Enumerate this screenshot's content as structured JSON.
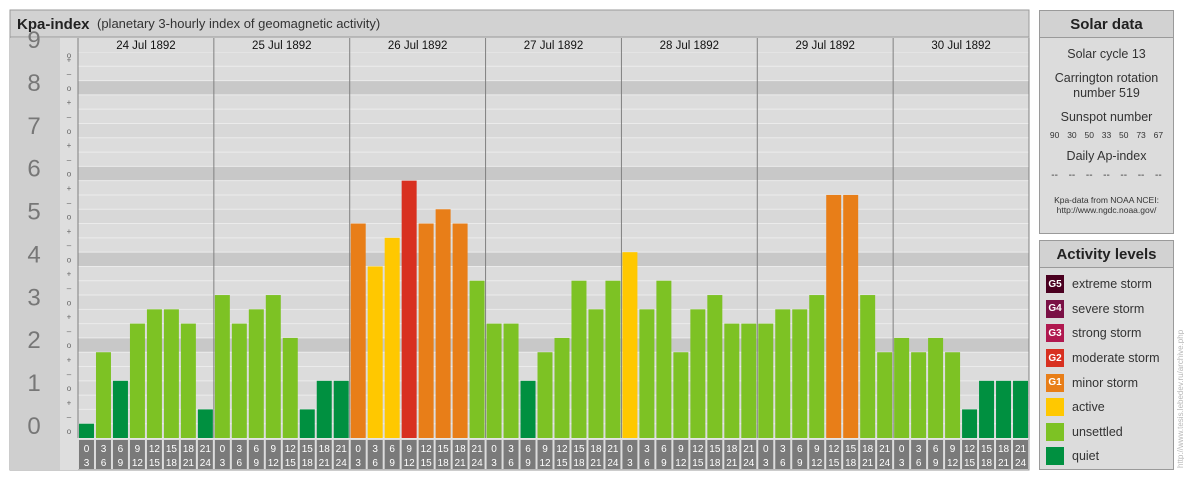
{
  "chart_data": {
    "type": "bar",
    "title": "Kpa-index",
    "subtitle": "(planetary 3-hourly index of geomagnetic activity)",
    "ylim": [
      0,
      9
    ],
    "y_ticks": [
      "0",
      "1",
      "2",
      "3",
      "4",
      "5",
      "6",
      "7",
      "8",
      "9"
    ],
    "sub_ticks": [
      "o",
      "–",
      "+"
    ],
    "days": [
      "24 Jul 1892",
      "25 Jul 1892",
      "26 Jul 1892",
      "27 Jul 1892",
      "28 Jul 1892",
      "29 Jul 1892",
      "30 Jul 1892"
    ],
    "interval_starts": [
      "0",
      "3",
      "6",
      "9",
      "12",
      "15",
      "18",
      "21"
    ],
    "interval_ends": [
      "3",
      "6",
      "9",
      "12",
      "15",
      "18",
      "21",
      "24"
    ],
    "values": [
      [
        0.333,
        2.0,
        1.333,
        2.667,
        3.0,
        3.0,
        2.667,
        0.667
      ],
      [
        3.333,
        2.667,
        3.0,
        3.333,
        2.333,
        0.667,
        1.333,
        1.333
      ],
      [
        5.0,
        4.0,
        4.667,
        6.0,
        5.0,
        5.333,
        5.0,
        3.667
      ],
      [
        2.667,
        2.667,
        1.333,
        2.0,
        2.333,
        3.667,
        3.0,
        3.667
      ],
      [
        4.333,
        3.0,
        3.667,
        2.0,
        3.0,
        3.333,
        2.667,
        2.667
      ],
      [
        2.667,
        3.0,
        3.0,
        3.333,
        5.667,
        5.667,
        3.333,
        2.0
      ],
      [
        2.333,
        2.0,
        2.333,
        2.0,
        0.667,
        1.333,
        1.333,
        1.333
      ]
    ],
    "level_colors": {
      "quiet": "#009040",
      "unsettled": "#7dc224",
      "active": "#ffc800",
      "G1": "#e87e18",
      "G2": "#d83020",
      "G3": "#b0184f",
      "G4": "#7a1045",
      "G5": "#4a0020"
    }
  },
  "solar": {
    "title": "Solar data",
    "cycle": "Solar cycle 13",
    "carrington_line1": "Carrington rotation",
    "carrington_line2": "number 519",
    "sunspot_title": "Sunspot number",
    "sunspot_values": [
      "90",
      "30",
      "50",
      "33",
      "50",
      "73",
      "67"
    ],
    "ap_title": "Daily Ap-index",
    "ap_values": [
      "--",
      "--",
      "--",
      "--",
      "--",
      "--",
      "--"
    ],
    "source_line1": "Kpa-data from NOAA NCEI:",
    "source_line2": "http://www.ngdc.noaa.gov/"
  },
  "activity": {
    "title": "Activity levels",
    "items": [
      {
        "badge": "G5",
        "label": "extreme storm",
        "color": "#4a0020"
      },
      {
        "badge": "G4",
        "label": "severe storm",
        "color": "#7a1045"
      },
      {
        "badge": "G3",
        "label": "strong storm",
        "color": "#b0184f"
      },
      {
        "badge": "G2",
        "label": "moderate storm",
        "color": "#d83020"
      },
      {
        "badge": "G1",
        "label": "minor storm",
        "color": "#e87e18"
      },
      {
        "badge": "",
        "label": "active",
        "color": "#ffc800"
      },
      {
        "badge": "",
        "label": "unsettled",
        "color": "#7dc224"
      },
      {
        "badge": "",
        "label": "quiet",
        "color": "#009040"
      }
    ]
  },
  "credit": "http://www.tesis.lebedev.ru/archive.php"
}
